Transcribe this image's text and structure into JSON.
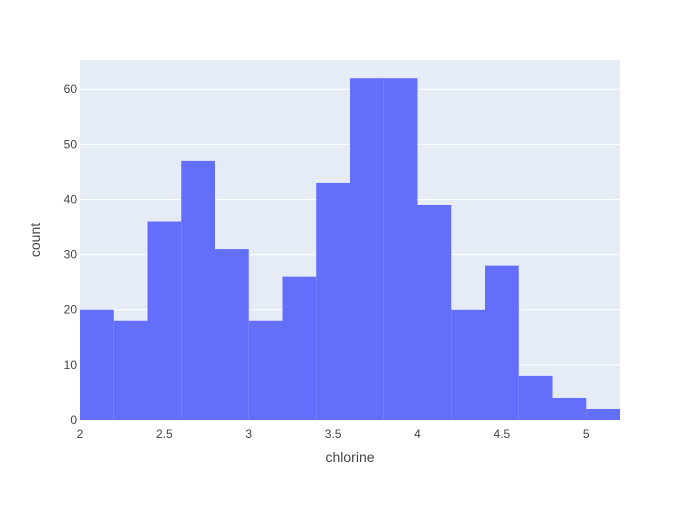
{
  "chart_data": {
    "type": "bar",
    "subtype": "histogram",
    "title": "",
    "xlabel": "chlorine",
    "ylabel": "count",
    "bins": [
      {
        "x0": 2.0,
        "x1": 2.2,
        "count": 20
      },
      {
        "x0": 2.2,
        "x1": 2.4,
        "count": 18
      },
      {
        "x0": 2.4,
        "x1": 2.6,
        "count": 36
      },
      {
        "x0": 2.6,
        "x1": 2.8,
        "count": 47
      },
      {
        "x0": 2.8,
        "x1": 3.0,
        "count": 31
      },
      {
        "x0": 3.0,
        "x1": 3.2,
        "count": 18
      },
      {
        "x0": 3.2,
        "x1": 3.4,
        "count": 26
      },
      {
        "x0": 3.4,
        "x1": 3.6,
        "count": 43
      },
      {
        "x0": 3.6,
        "x1": 3.8,
        "count": 62
      },
      {
        "x0": 3.8,
        "x1": 4.0,
        "count": 62
      },
      {
        "x0": 4.0,
        "x1": 4.2,
        "count": 39
      },
      {
        "x0": 4.2,
        "x1": 4.4,
        "count": 20
      },
      {
        "x0": 4.4,
        "x1": 4.6,
        "count": 28
      },
      {
        "x0": 4.6,
        "x1": 4.8,
        "count": 8
      },
      {
        "x0": 4.8,
        "x1": 5.0,
        "count": 4
      },
      {
        "x0": 5.0,
        "x1": 5.2,
        "count": 2
      }
    ],
    "xlim": [
      2.0,
      5.2
    ],
    "ylim": [
      0,
      65.3
    ],
    "xticks": [
      2,
      2.5,
      3,
      3.5,
      4,
      4.5,
      5
    ],
    "xtick_labels": [
      "2",
      "2.5",
      "3",
      "3.5",
      "4",
      "4.5",
      "5"
    ],
    "yticks": [
      0,
      10,
      20,
      30,
      40,
      50,
      60
    ],
    "ytick_labels": [
      "0",
      "10",
      "20",
      "30",
      "40",
      "50",
      "60"
    ],
    "grid": true,
    "legend": "none",
    "colors": {
      "bar": "#636efa",
      "plot_bg": "#e5ecf6",
      "grid": "#ffffff",
      "text": "#444444"
    }
  }
}
